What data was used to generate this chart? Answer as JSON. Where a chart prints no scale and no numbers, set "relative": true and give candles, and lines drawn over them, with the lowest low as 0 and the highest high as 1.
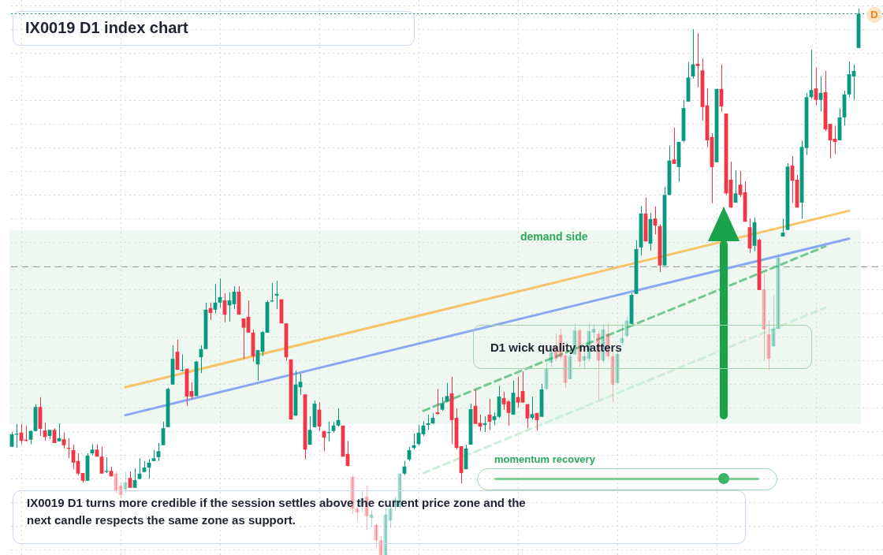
{
  "chart_data": {
    "type": "candlestick",
    "title": "IX0019 D1 index chart",
    "relative": true,
    "grid": true,
    "tick_labels": false,
    "annotations": [
      "D1 wick quality matters",
      "momentum recovery",
      "IX0019 D1 turns more credible if the session settles above the current price zone and the next candle respects the same zone as support.",
      "D"
    ],
    "categories": [
      null,
      null,
      null,
      null,
      null,
      null,
      null,
      null,
      null,
      null,
      null,
      null,
      null,
      null,
      null,
      null,
      null,
      null,
      null,
      null,
      null,
      null,
      null,
      null,
      null,
      null,
      null,
      null,
      null,
      null,
      null,
      null,
      null,
      null,
      null,
      null,
      null,
      null,
      null,
      null,
      null,
      null,
      null,
      null,
      null,
      null,
      null,
      null,
      null,
      null,
      null,
      null,
      null,
      null,
      null,
      null,
      null,
      null,
      null,
      null,
      null,
      null,
      null,
      null,
      null,
      null,
      null,
      null,
      null,
      null,
      null,
      null,
      null,
      null,
      null,
      null,
      null,
      null,
      null,
      null,
      null,
      null,
      null,
      null,
      null,
      null,
      null,
      null,
      null,
      null,
      null,
      null,
      null,
      null,
      null,
      null,
      null,
      null,
      null,
      null,
      null,
      null,
      null,
      null,
      null,
      null,
      null,
      null,
      null,
      null,
      null,
      null,
      null,
      null,
      null,
      null,
      null,
      null,
      null,
      null,
      null,
      null,
      null,
      null,
      null,
      null,
      null,
      null,
      null,
      null,
      null,
      null,
      null,
      null,
      null,
      null,
      null,
      null,
      null,
      null,
      null,
      null,
      null,
      null,
      null,
      null,
      null,
      null,
      null,
      null,
      null,
      null,
      null,
      null,
      null,
      null,
      null,
      null,
      null,
      null,
      null,
      null,
      null,
      null,
      null,
      null,
      null,
      null,
      null,
      null,
      null,
      null,
      null,
      null,
      null,
      null,
      null,
      null,
      null,
      null
    ],
    "series": [
      {
        "type": "candlestick",
        "ohlc": [
          [
            0.198,
            0.225,
            0.198,
            0.221
          ],
          [
            0.221,
            0.24,
            0.196,
            0.222
          ],
          [
            0.224,
            0.24,
            0.203,
            0.209
          ],
          [
            0.211,
            0.237,
            0.208,
            0.209
          ],
          [
            0.211,
            0.228,
            0.203,
            0.227
          ],
          [
            0.227,
            0.276,
            0.227,
            0.271
          ],
          [
            0.271,
            0.289,
            0.218,
            0.231
          ],
          [
            0.228,
            0.242,
            0.209,
            0.216
          ],
          [
            0.218,
            0.229,
            0.212,
            0.229
          ],
          [
            0.229,
            0.232,
            0.205,
            0.205
          ],
          [
            0.208,
            0.241,
            0.208,
            0.214
          ],
          [
            0.212,
            0.224,
            0.195,
            0.201
          ],
          [
            0.196,
            0.214,
            0.177,
            0.195
          ],
          [
            0.192,
            0.202,
            0.157,
            0.169
          ],
          [
            0.172,
            0.186,
            0.146,
            0.149
          ],
          [
            0.15,
            0.15,
            0.133,
            0.136
          ],
          [
            0.136,
            0.186,
            0.136,
            0.182
          ],
          [
            0.186,
            0.203,
            0.183,
            0.193
          ],
          [
            0.193,
            0.203,
            0.18,
            0.18
          ],
          [
            0.18,
            0.198,
            0.149,
            0.149
          ],
          [
            0.152,
            0.179,
            0.15,
            0.154
          ],
          [
            0.154,
            0.162,
            0.144,
            0.144
          ],
          [
            0.149,
            0.154,
            0.113,
            0.117
          ],
          [
            0.127,
            0.133,
            0.104,
            0.11
          ],
          [
            0.12,
            0.152,
            0.114,
            0.133
          ],
          [
            0.141,
            0.153,
            0.123,
            0.123
          ],
          [
            0.123,
            0.159,
            0.123,
            0.137
          ],
          [
            0.139,
            0.177,
            0.139,
            0.149
          ],
          [
            0.152,
            0.172,
            0.152,
            0.16
          ],
          [
            0.16,
            0.175,
            0.14,
            0.169
          ],
          [
            0.172,
            0.192,
            0.172,
            0.177
          ],
          [
            0.179,
            0.205,
            0.172,
            0.19
          ],
          [
            0.201,
            0.244,
            0.201,
            0.232
          ],
          [
            0.234,
            0.306,
            0.234,
            0.304
          ],
          [
            0.312,
            0.384,
            0.312,
            0.359
          ],
          [
            0.372,
            0.394,
            0.339,
            0.339
          ],
          [
            0.338,
            0.367,
            0.336,
            0.339
          ],
          [
            0.341,
            0.341,
            0.273,
            0.29
          ],
          [
            0.3,
            0.316,
            0.286,
            0.29
          ],
          [
            0.291,
            0.355,
            0.291,
            0.354
          ],
          [
            0.362,
            0.384,
            0.333,
            0.377
          ],
          [
            0.377,
            0.462,
            0.377,
            0.449
          ],
          [
            0.452,
            0.462,
            0.43,
            0.443
          ],
          [
            0.449,
            0.496,
            0.443,
            0.462
          ],
          [
            0.462,
            0.506,
            0.453,
            0.472
          ],
          [
            0.466,
            0.479,
            0.426,
            0.44
          ],
          [
            0.457,
            0.481,
            0.427,
            0.466
          ],
          [
            0.459,
            0.492,
            0.45,
            0.482
          ],
          [
            0.482,
            0.492,
            0.44,
            0.44
          ],
          [
            0.433,
            0.433,
            0.359,
            0.416
          ],
          [
            0.436,
            0.466,
            0.407,
            0.407
          ],
          [
            0.407,
            0.413,
            0.354,
            0.364
          ],
          [
            0.349,
            0.375,
            0.319,
            0.375
          ],
          [
            0.372,
            0.41,
            0.364,
            0.408
          ],
          [
            0.407,
            0.466,
            0.407,
            0.463
          ],
          [
            0.465,
            0.498,
            0.463,
            0.466
          ],
          [
            0.475,
            0.502,
            0.45,
            0.478
          ],
          [
            0.468,
            0.468,
            0.424,
            0.424
          ],
          [
            0.424,
            0.424,
            0.356,
            0.362
          ],
          [
            0.358,
            0.358,
            0.248,
            0.248
          ],
          [
            0.255,
            0.338,
            0.255,
            0.312
          ],
          [
            0.307,
            0.332,
            0.293,
            0.317
          ],
          [
            0.294,
            0.294,
            0.175,
            0.193
          ],
          [
            0.202,
            0.254,
            0.202,
            0.229
          ],
          [
            0.234,
            0.283,
            0.234,
            0.277
          ],
          [
            0.266,
            0.279,
            0.227,
            0.235
          ],
          [
            0.227,
            0.227,
            0.19,
            0.215
          ],
          [
            0.224,
            0.244,
            0.208,
            0.225
          ],
          [
            0.227,
            0.244,
            0.224,
            0.237
          ],
          [
            0.237,
            0.268,
            0.235,
            0.247
          ],
          [
            0.237,
            0.237,
            0.18,
            0.18
          ],
          [
            0.185,
            0.209,
            0.162,
            0.163
          ],
          [
            0.143,
            0.146,
            0.075,
            0.085
          ],
          [
            0.085,
            0.092,
            0.063,
            0.078
          ],
          [
            0.089,
            0.117,
            0.078,
            0.104
          ],
          [
            0.107,
            0.127,
            0.046,
            0.071
          ],
          [
            0.068,
            0.082,
            0.051,
            0.074
          ],
          [
            0.055,
            0.058,
            0.013,
            0.027
          ],
          [
            0.027,
            0.035,
            0,
            0
          ],
          [
            0,
            0.085,
            0,
            0.074
          ],
          [
            0.063,
            0.092,
            0.049,
            0.085
          ],
          [
            0.088,
            0.107,
            0.081,
            0.102
          ],
          [
            0.088,
            0.15,
            0.085,
            0.149
          ],
          [
            0.149,
            0.172,
            0.146,
            0.162
          ],
          [
            0.175,
            0.198,
            0.172,
            0.192
          ],
          [
            0.196,
            0.222,
            0.193,
            0.201
          ],
          [
            0.203,
            0.238,
            0.201,
            0.224
          ],
          [
            0.221,
            0.245,
            0.218,
            0.237
          ],
          [
            0.238,
            0.257,
            0.229,
            0.241
          ],
          [
            0.241,
            0.26,
            0.24,
            0.251
          ],
          [
            0.261,
            0.304,
            0.257,
            0.258
          ],
          [
            0.266,
            0.289,
            0.264,
            0.278
          ],
          [
            0.281,
            0.315,
            0.28,
            0.291
          ],
          [
            0.296,
            0.326,
            0.203,
            0.247
          ],
          [
            0.251,
            0.268,
            0.193,
            0.196
          ],
          [
            0.199,
            0.199,
            0.131,
            0.15
          ],
          [
            0.157,
            0.202,
            0.157,
            0.195
          ],
          [
            0.202,
            0.277,
            0.202,
            0.267
          ],
          [
            0.273,
            0.303,
            0.24,
            0.24
          ],
          [
            0.242,
            0.257,
            0.227,
            0.235
          ],
          [
            0.238,
            0.254,
            0.225,
            0.241
          ],
          [
            0.257,
            0.286,
            0.229,
            0.244
          ],
          [
            0.247,
            0.261,
            0.238,
            0.254
          ],
          [
            0.253,
            0.31,
            0.251,
            0.29
          ],
          [
            0.287,
            0.299,
            0.266,
            0.276
          ],
          [
            0.281,
            0.283,
            0.237,
            0.26
          ],
          [
            0.257,
            0.319,
            0.257,
            0.297
          ],
          [
            0.289,
            0.326,
            0.27,
            0.279
          ],
          [
            0.3,
            0.336,
            0.279,
            0.279
          ],
          [
            0.276,
            0.276,
            0.232,
            0.25
          ],
          [
            0.251,
            0.29,
            0.248,
            0.258
          ],
          [
            0.26,
            0.26,
            0.228,
            0.247
          ],
          [
            0.253,
            0.313,
            0.253,
            0.303
          ],
          [
            0.304,
            0.352,
            0.302,
            0.342
          ],
          [
            0.352,
            0.377,
            0.345,
            0.371
          ],
          [
            0.381,
            0.405,
            0.355,
            0.359
          ],
          [
            0.403,
            0.414,
            0.358,
            0.362
          ],
          [
            0.365,
            0.374,
            0.306,
            0.315
          ],
          [
            0.322,
            0.381,
            0.322,
            0.364
          ],
          [
            0.367,
            0.424,
            0.367,
            0.411
          ],
          [
            0.411,
            0.414,
            0.345,
            0.354
          ],
          [
            0.356,
            0.381,
            0.342,
            0.364
          ],
          [
            0.359,
            0.423,
            0.355,
            0.41
          ],
          [
            0.407,
            0.423,
            0.395,
            0.414
          ],
          [
            0.405,
            0.41,
            0.284,
            0.356
          ],
          [
            0.356,
            0.423,
            0.352,
            0.413
          ],
          [
            0.405,
            0.423,
            0.359,
            0.364
          ],
          [
            0.364,
            0.374,
            0.28,
            0.312
          ],
          [
            0.315,
            0.374,
            0.315,
            0.368
          ],
          [
            0.388,
            0.423,
            0.385,
            0.397
          ],
          [
            0.401,
            0.436,
            0.398,
            0.429
          ],
          [
            0.423,
            0.479,
            0.423,
            0.476
          ],
          [
            0.478,
            0.576,
            0.478,
            0.56
          ],
          [
            0.563,
            0.639,
            0.548,
            0.625
          ],
          [
            0.625,
            0.654,
            0.574,
            0.574
          ],
          [
            0.57,
            0.626,
            0.557,
            0.615
          ],
          [
            0.616,
            0.638,
            0.587,
            0.603
          ],
          [
            0.602,
            0.605,
            0.518,
            0.53
          ],
          [
            0.53,
            0.674,
            0.53,
            0.659
          ],
          [
            0.659,
            0.749,
            0.659,
            0.722
          ],
          [
            0.724,
            0.782,
            0.716,
            0.716
          ],
          [
            0.71,
            0.756,
            0.683,
            0.756
          ],
          [
            0.758,
            0.833,
            0.756,
            0.818
          ],
          [
            0.83,
            0.902,
            0.83,
            0.874
          ],
          [
            0.876,
            0.962,
            0.872,
            0.898
          ],
          [
            0.899,
            0.955,
            0.856,
            0.895
          ],
          [
            0.887,
            0.909,
            0.795,
            0.82
          ],
          [
            0.823,
            0.854,
            0.747,
            0.759
          ],
          [
            0.765,
            0.772,
            0.644,
            0.71
          ],
          [
            0.719,
            0.854,
            0.719,
            0.853
          ],
          [
            0.853,
            0.898,
            0.811,
            0.821
          ],
          [
            0.808,
            0.808,
            0.659,
            0.662
          ],
          [
            0.687,
            0.72,
            0.636,
            0.636
          ],
          [
            0.645,
            0.704,
            0.645,
            0.662
          ],
          [
            0.678,
            0.703,
            0.655,
            0.659
          ],
          [
            0.664,
            0.684,
            0.61,
            0.61
          ],
          [
            0.6,
            0.616,
            0.553,
            0.561
          ],
          [
            0.566,
            0.618,
            0.556,
            0.609
          ],
          [
            0.577,
            0.579,
            0.485,
            0.485
          ],
          [
            0.486,
            0.515,
            0.356,
            0.413
          ],
          [
            0.404,
            0.429,
            0.338,
            0.359
          ],
          [
            0.382,
            0.475,
            0.382,
            0.414
          ],
          [
            0.414,
            0.551,
            0.414,
            0.544
          ],
          [
            0.583,
            0.615,
            0.583,
            0.59
          ],
          [
            0.595,
            0.717,
            0.595,
            0.711
          ],
          [
            0.713,
            0.73,
            0.645,
            0.685
          ],
          [
            0.687,
            0.696,
            0.636,
            0.636
          ],
          [
            0.645,
            0.758,
            0.616,
            0.747
          ],
          [
            0.745,
            0.846,
            0.732,
            0.838
          ],
          [
            0.838,
            0.925,
            0.835,
            0.851
          ],
          [
            0.854,
            0.892,
            0.824,
            0.833
          ],
          [
            0.833,
            0.876,
            0.812,
            0.846
          ],
          [
            0.847,
            0.886,
            0.776,
            0.779
          ],
          [
            0.789,
            0.789,
            0.726,
            0.759
          ],
          [
            0.762,
            0.786,
            0.734,
            0.756
          ],
          [
            0.759,
            0.818,
            0.759,
            0.801
          ],
          [
            0.801,
            0.85,
            0.786,
            0.843
          ],
          [
            0.843,
            0.903,
            0.838,
            0.88
          ],
          [
            0.876,
            0.898,
            0.833,
            0.886
          ],
          [
            0.928,
            1,
            0.928,
            0.991
          ]
        ],
        "colors": [
          "#089981",
          "#089981",
          "#f23645",
          "#f23645",
          "#089981",
          "#089981",
          "#f23645",
          "#f23645",
          "#089981",
          "#f23645",
          "#089981",
          "#f23645",
          "#f23645",
          "#f23645",
          "#f23645",
          "#f23645",
          "#089981",
          "#089981",
          "#f23645",
          "#f23645",
          "#089981",
          "#f23645",
          "#f23645",
          "#f23645",
          "#089981",
          "#f23645",
          "#089981",
          "#089981",
          "#089981",
          "#089981",
          "#089981",
          "#089981",
          "#089981",
          "#089981",
          "#089981",
          "#f23645",
          "#089981",
          "#f23645",
          "#f23645",
          "#089981",
          "#089981",
          "#089981",
          "#f23645",
          "#089981",
          "#089981",
          "#f23645",
          "#089981",
          "#089981",
          "#f23645",
          "#f23645",
          "#f23645",
          "#f23645",
          "#089981",
          "#089981",
          "#089981",
          "#089981",
          "#089981",
          "#f23645",
          "#f23645",
          "#f23645",
          "#089981",
          "#089981",
          "#f23645",
          "#089981",
          "#089981",
          "#f23645",
          "#f23645",
          "#089981",
          "#089981",
          "#089981",
          "#f23645",
          "#f23645",
          "#f23645",
          "#f23645",
          "#089981",
          "#f23645",
          "#089981",
          "#f23645",
          "#f23645",
          "#089981",
          "#089981",
          "#089981",
          "#089981",
          "#089981",
          "#089981",
          "#089981",
          "#089981",
          "#089981",
          "#089981",
          "#089981",
          "#f23645",
          "#089981",
          "#089981",
          "#f23645",
          "#f23645",
          "#f23645",
          "#089981",
          "#089981",
          "#f23645",
          "#f23645",
          "#089981",
          "#f23645",
          "#089981",
          "#089981",
          "#f23645",
          "#f23645",
          "#089981",
          "#f23645",
          "#f23645",
          "#f23645",
          "#089981",
          "#f23645",
          "#089981",
          "#089981",
          "#089981",
          "#f23645",
          "#f23645",
          "#f23645",
          "#089981",
          "#089981",
          "#f23645",
          "#089981",
          "#089981",
          "#089981",
          "#f23645",
          "#089981",
          "#f23645",
          "#f23645",
          "#089981",
          "#089981",
          "#089981",
          "#089981",
          "#089981",
          "#089981",
          "#f23645",
          "#089981",
          "#f23645",
          "#f23645",
          "#089981",
          "#089981",
          "#f23645",
          "#089981",
          "#089981",
          "#089981",
          "#089981",
          "#f23645",
          "#f23645",
          "#f23645",
          "#f23645",
          "#089981",
          "#f23645",
          "#f23645",
          "#f23645",
          "#089981",
          "#f23645",
          "#f23645",
          "#f23645",
          "#089981",
          "#f23645",
          "#f23645",
          "#f23645",
          "#089981",
          "#089981",
          "#089981",
          "#089981",
          "#f23645",
          "#f23645",
          "#089981",
          "#089981",
          "#089981",
          "#f23645",
          "#089981",
          "#f23645",
          "#f23645",
          "#f23645",
          "#089981",
          "#089981",
          "#089981",
          "#089981",
          "#089981"
        ]
      },
      {
        "type": "line",
        "color": "#f7c46c",
        "values": [
          null,
          null,
          null,
          null,
          null,
          null,
          null,
          null,
          null,
          null,
          null,
          null,
          null,
          null,
          null,
          null,
          null,
          null,
          null,
          null,
          null,
          null,
          null,
          null,
          0.307,
          null,
          null,
          null,
          null,
          null,
          null,
          null,
          null,
          null,
          null,
          null,
          null,
          null,
          null,
          null,
          null,
          null,
          null,
          null,
          null,
          null,
          null,
          null,
          null,
          null,
          null,
          null,
          null,
          null,
          null,
          null,
          null,
          null,
          null,
          null,
          null,
          null,
          null,
          null,
          null,
          null,
          null,
          null,
          null,
          null,
          null,
          null,
          null,
          null,
          null,
          null,
          null,
          null,
          null,
          null,
          null,
          null,
          null,
          null,
          null,
          null,
          null,
          null,
          null,
          null,
          null,
          null,
          null,
          null,
          null,
          null,
          null,
          null,
          null,
          null,
          null,
          null,
          null,
          null,
          null,
          null,
          null,
          null,
          null,
          null,
          null,
          null,
          null,
          null,
          null,
          null,
          null,
          null,
          null,
          null,
          null,
          null,
          null,
          null,
          null,
          null,
          null,
          null,
          null,
          null,
          null,
          null,
          null,
          null,
          null,
          null,
          null,
          null,
          null,
          null,
          null,
          null,
          null,
          null,
          null,
          null,
          null,
          null,
          null,
          null,
          null,
          null,
          null,
          null,
          null,
          null,
          null,
          null,
          null,
          null,
          null,
          null,
          null,
          null,
          null,
          null,
          null,
          null,
          null,
          null,
          null,
          null,
          null,
          null,
          null,
          null,
          null,
          0.63,
          null,
          null
        ]
      },
      {
        "type": "line",
        "color": "#8aa8f0",
        "values": [
          null,
          null,
          null,
          null,
          null,
          null,
          null,
          null,
          null,
          null,
          null,
          null,
          null,
          null,
          null,
          null,
          null,
          null,
          null,
          null,
          null,
          null,
          null,
          null,
          0.256,
          null,
          null,
          null,
          null,
          null,
          null,
          null,
          null,
          null,
          null,
          null,
          null,
          null,
          null,
          null,
          null,
          null,
          null,
          null,
          null,
          null,
          null,
          null,
          null,
          null,
          null,
          null,
          null,
          null,
          null,
          null,
          null,
          null,
          null,
          null,
          null,
          null,
          null,
          null,
          null,
          null,
          null,
          null,
          null,
          null,
          null,
          null,
          null,
          null,
          null,
          null,
          null,
          null,
          null,
          null,
          null,
          null,
          null,
          null,
          null,
          null,
          null,
          null,
          null,
          null,
          null,
          null,
          null,
          null,
          null,
          null,
          null,
          null,
          null,
          null,
          null,
          null,
          null,
          null,
          null,
          null,
          null,
          null,
          null,
          null,
          null,
          null,
          null,
          null,
          null,
          null,
          null,
          null,
          null,
          null,
          null,
          null,
          null,
          null,
          null,
          null,
          null,
          null,
          null,
          null,
          null,
          null,
          null,
          null,
          null,
          null,
          null,
          null,
          null,
          null,
          null,
          null,
          null,
          null,
          null,
          null,
          null,
          null,
          null,
          null,
          null,
          null,
          null,
          null,
          null,
          null,
          null,
          null,
          null,
          null,
          null,
          null,
          null,
          null,
          null,
          null,
          null,
          null,
          null,
          null,
          null,
          null,
          null,
          null,
          null,
          null,
          null,
          0.579,
          null,
          null
        ]
      },
      {
        "type": "line",
        "color": "#74c892",
        "line_style": "dashed",
        "values": [
          null,
          null,
          null,
          null,
          null,
          null,
          null,
          null,
          null,
          null,
          null,
          null,
          null,
          null,
          null,
          null,
          null,
          null,
          null,
          null,
          null,
          null,
          null,
          null,
          null,
          null,
          null,
          null,
          null,
          null,
          null,
          null,
          null,
          null,
          null,
          null,
          null,
          null,
          null,
          null,
          null,
          null,
          null,
          null,
          null,
          null,
          null,
          null,
          null,
          null,
          null,
          null,
          null,
          null,
          null,
          null,
          null,
          null,
          null,
          null,
          null,
          null,
          null,
          null,
          null,
          null,
          null,
          null,
          null,
          null,
          null,
          null,
          null,
          null,
          null,
          null,
          null,
          null,
          null,
          null,
          null,
          null,
          null,
          null,
          null,
          null,
          null,
          0.264,
          null,
          null,
          null,
          null,
          null,
          null,
          null,
          null,
          null,
          null,
          null,
          null,
          null,
          null,
          null,
          null,
          null,
          null,
          null,
          null,
          null,
          null,
          null,
          null,
          null,
          null,
          null,
          null,
          null,
          null,
          null,
          null,
          null,
          null,
          null,
          null,
          null,
          null,
          null,
          null,
          null,
          null,
          null,
          null,
          null,
          null,
          null,
          null,
          null,
          null,
          null,
          null,
          null,
          null,
          null,
          null,
          null,
          null,
          null,
          null,
          null,
          null,
          null,
          null,
          null,
          null,
          null,
          null,
          null,
          null,
          null,
          null,
          null,
          null,
          null,
          null,
          null,
          null,
          null,
          null,
          null,
          null,
          null,
          null,
          0.565,
          null,
          null,
          null,
          null,
          null,
          null,
          null
        ]
      },
      {
        "type": "line",
        "color": "#cdeed8",
        "line_style": "dashed",
        "values": [
          null,
          null,
          null,
          null,
          null,
          null,
          null,
          null,
          null,
          null,
          null,
          null,
          null,
          null,
          null,
          null,
          null,
          null,
          null,
          null,
          null,
          null,
          null,
          null,
          null,
          null,
          null,
          null,
          null,
          null,
          null,
          null,
          null,
          null,
          null,
          null,
          null,
          null,
          null,
          null,
          null,
          null,
          null,
          null,
          null,
          null,
          null,
          null,
          null,
          null,
          null,
          null,
          null,
          null,
          null,
          null,
          null,
          null,
          null,
          null,
          null,
          null,
          null,
          null,
          null,
          null,
          null,
          null,
          null,
          null,
          null,
          null,
          null,
          null,
          null,
          null,
          null,
          null,
          null,
          null,
          null,
          null,
          null,
          null,
          null,
          null,
          null,
          0.15,
          null,
          null,
          null,
          null,
          null,
          null,
          null,
          null,
          null,
          null,
          null,
          null,
          null,
          null,
          null,
          null,
          null,
          null,
          null,
          null,
          null,
          null,
          null,
          null,
          null,
          null,
          null,
          null,
          null,
          null,
          null,
          null,
          null,
          null,
          null,
          null,
          null,
          null,
          null,
          null,
          null,
          null,
          null,
          null,
          null,
          null,
          null,
          null,
          null,
          null,
          null,
          null,
          null,
          null,
          null,
          null,
          null,
          null,
          null,
          null,
          null,
          null,
          null,
          null,
          null,
          null,
          null,
          null,
          null,
          null,
          null,
          null,
          null,
          null,
          null,
          null,
          null,
          null,
          null,
          null,
          null,
          null,
          null,
          null,
          0.453,
          null,
          null,
          null,
          null,
          null,
          null,
          null
        ]
      }
    ],
    "bands": [
      {
        "axis": "y",
        "from": 0.24,
        "to": 0.595,
        "label": "demand side",
        "color": "#eef8f1"
      }
    ],
    "ref_lines": [
      {
        "axis": "y",
        "value": 0.528,
        "color": "#9e9e9e",
        "line_style": "dashed"
      },
      {
        "axis": "y",
        "value": 0.991,
        "color": "#089981",
        "line_style": "dotted"
      }
    ]
  }
}
